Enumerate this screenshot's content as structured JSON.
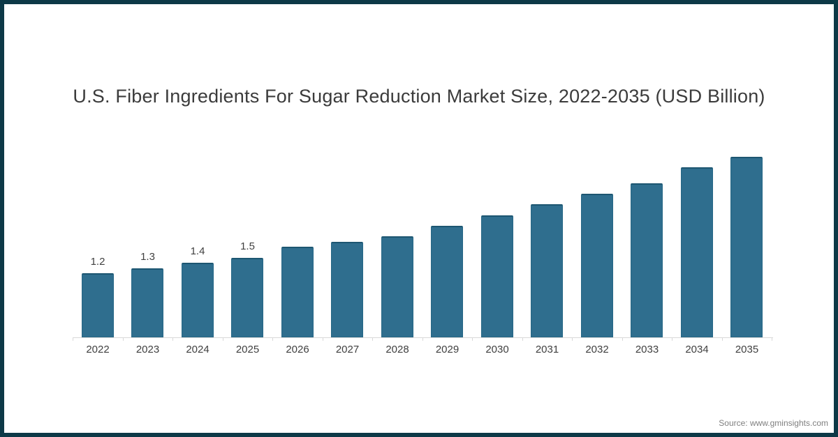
{
  "title": "U.S. Fiber Ingredients For Sugar Reduction Market Size, 2022-2035 (USD Billion)",
  "source": "Source: www.gminsights.com",
  "colors": {
    "frame": "#0d3947",
    "background": "#ffffff",
    "bar_fill": "#2f6e8e",
    "bar_border": "#1d5671",
    "axis": "#d9d9d9",
    "title_text": "#3b3b3b",
    "label_text": "#404040",
    "source_text": "#7f7f7f"
  },
  "chart_data": {
    "type": "bar",
    "title": "U.S. Fiber Ingredients For Sugar Reduction Market Size, 2022-2035 (USD Billion)",
    "categories": [
      "2022",
      "2023",
      "2024",
      "2025",
      "2026",
      "2027",
      "2028",
      "2029",
      "2030",
      "2031",
      "2032",
      "2033",
      "2034",
      "2035"
    ],
    "values": [
      1.2,
      1.3,
      1.4,
      1.5,
      1.7,
      1.8,
      1.9,
      2.1,
      2.3,
      2.5,
      2.7,
      2.9,
      3.2,
      3.4
    ],
    "point_labels": [
      "1.2",
      "1.3",
      "1.4",
      "1.5",
      "",
      "",
      "",
      "",
      "",
      "",
      "",
      "",
      "",
      ""
    ],
    "xlabel": "",
    "ylabel": "",
    "ylim": [
      0,
      4.3
    ],
    "grid": false,
    "legend": "none",
    "y_axis_visible": false,
    "series_name": "Market Size (USD Billion)"
  }
}
